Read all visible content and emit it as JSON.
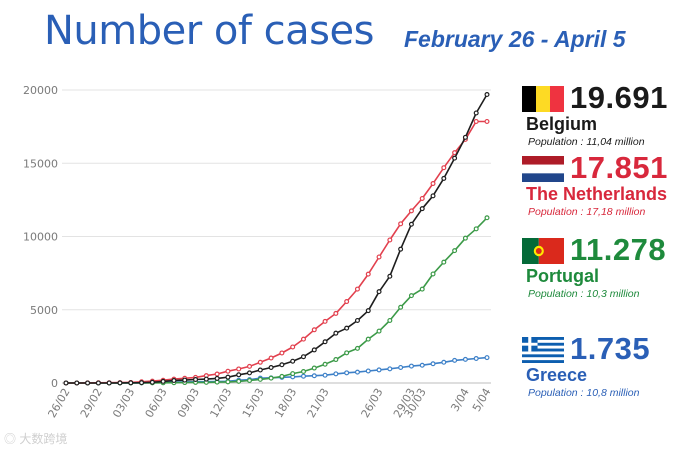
{
  "title": "Number of cases",
  "subtitle": "February 26 - April 5",
  "watermark": "大数跨境",
  "colors": {
    "title": "#2a5fb6",
    "grid": "#e3e3e3",
    "axis": "#bdbdbd"
  },
  "legend": [
    {
      "value": "19.691",
      "country": "Belgium",
      "population": "Population : 11,04 million",
      "color": "#1a1a1a",
      "pop_color": "#1a1a1a",
      "flag": "belgium-flag"
    },
    {
      "value": "17.851",
      "country": "The Netherlands",
      "population": "Population : 17,18 million",
      "color": "#d8283c",
      "pop_color": "#d8283c",
      "flag": "netherlands-flag"
    },
    {
      "value": "11.278",
      "country": "Portugal",
      "population": "Population : 10,3 million",
      "color": "#1e8a3c",
      "pop_color": "#1e8a3c",
      "flag": "portugal-flag"
    },
    {
      "value": "1.735",
      "country": "Greece",
      "population": "Population : 10,8 million",
      "color": "#2a5fb6",
      "pop_color": "#2a5fb6",
      "flag": "greece-flag"
    }
  ],
  "chart_data": {
    "type": "line",
    "x": [
      "26/02",
      "27/02",
      "28/02",
      "29/02",
      "01/03",
      "02/03",
      "03/03",
      "04/03",
      "05/03",
      "06/03",
      "07/03",
      "08/03",
      "09/03",
      "10/03",
      "11/03",
      "12/03",
      "13/03",
      "14/03",
      "15/03",
      "16/03",
      "17/03",
      "18/03",
      "19/03",
      "20/03",
      "21/03",
      "22/03",
      "23/03",
      "24/03",
      "25/03",
      "26/03",
      "27/03",
      "28/03",
      "29/03",
      "30/03",
      "31/03",
      "1/04",
      "2/04",
      "3/04",
      "4/04",
      "5/04"
    ],
    "xticks": [
      "26/02",
      "29/02",
      "03/03",
      "06/03",
      "09/03",
      "12/03",
      "15/03",
      "18/03",
      "21/03",
      "26/03",
      "29/03",
      "30/03",
      "3/04",
      "5/04"
    ],
    "yticks": [
      0,
      5000,
      10000,
      15000,
      20000
    ],
    "ylim": [
      0,
      20000
    ],
    "grid": true,
    "series": [
      {
        "name": "Greece",
        "color": "#3d80c8",
        "values": [
          0,
          1,
          3,
          4,
          7,
          7,
          7,
          9,
          31,
          45,
          66,
          73,
          84,
          89,
          99,
          117,
          190,
          228,
          331,
          352,
          387,
          418,
          464,
          495,
          530,
          624,
          695,
          743,
          821,
          892,
          966,
          1061,
          1156,
          1212,
          1314,
          1415,
          1544,
          1613,
          1673,
          1735
        ]
      },
      {
        "name": "Portugal",
        "color": "#3c9a48",
        "values": [
          0,
          0,
          0,
          0,
          0,
          2,
          4,
          6,
          9,
          13,
          21,
          30,
          39,
          41,
          59,
          78,
          112,
          169,
          245,
          331,
          448,
          642,
          785,
          1020,
          1280,
          1600,
          2060,
          2362,
          2995,
          3544,
          4268,
          5170,
          5962,
          6408,
          7443,
          8251,
          9034,
          9886,
          10524,
          11278
        ]
      },
      {
        "name": "The Netherlands",
        "color": "#e2404e",
        "values": [
          1,
          2,
          7,
          13,
          18,
          24,
          38,
          82,
          128,
          188,
          265,
          321,
          382,
          503,
          614,
          804,
          959,
          1135,
          1413,
          1705,
          2051,
          2460,
          2994,
          3631,
          4204,
          4749,
          5560,
          6412,
          7431,
          8603,
          9762,
          10866,
          11750,
          12595,
          13614,
          14697,
          15723,
          16627,
          17851,
          17851
        ]
      },
      {
        "name": "Belgium",
        "color": "#1e1e1e",
        "values": [
          1,
          1,
          1,
          1,
          2,
          8,
          13,
          23,
          50,
          109,
          169,
          200,
          239,
          267,
          314,
          399,
          559,
          689,
          886,
          1058,
          1243,
          1486,
          1795,
          2257,
          2815,
          3401,
          3743,
          4269,
          4937,
          6235,
          7284,
          9134,
          10836,
          11899,
          12775,
          13964,
          15348,
          16770,
          18431,
          19691
        ]
      }
    ]
  }
}
